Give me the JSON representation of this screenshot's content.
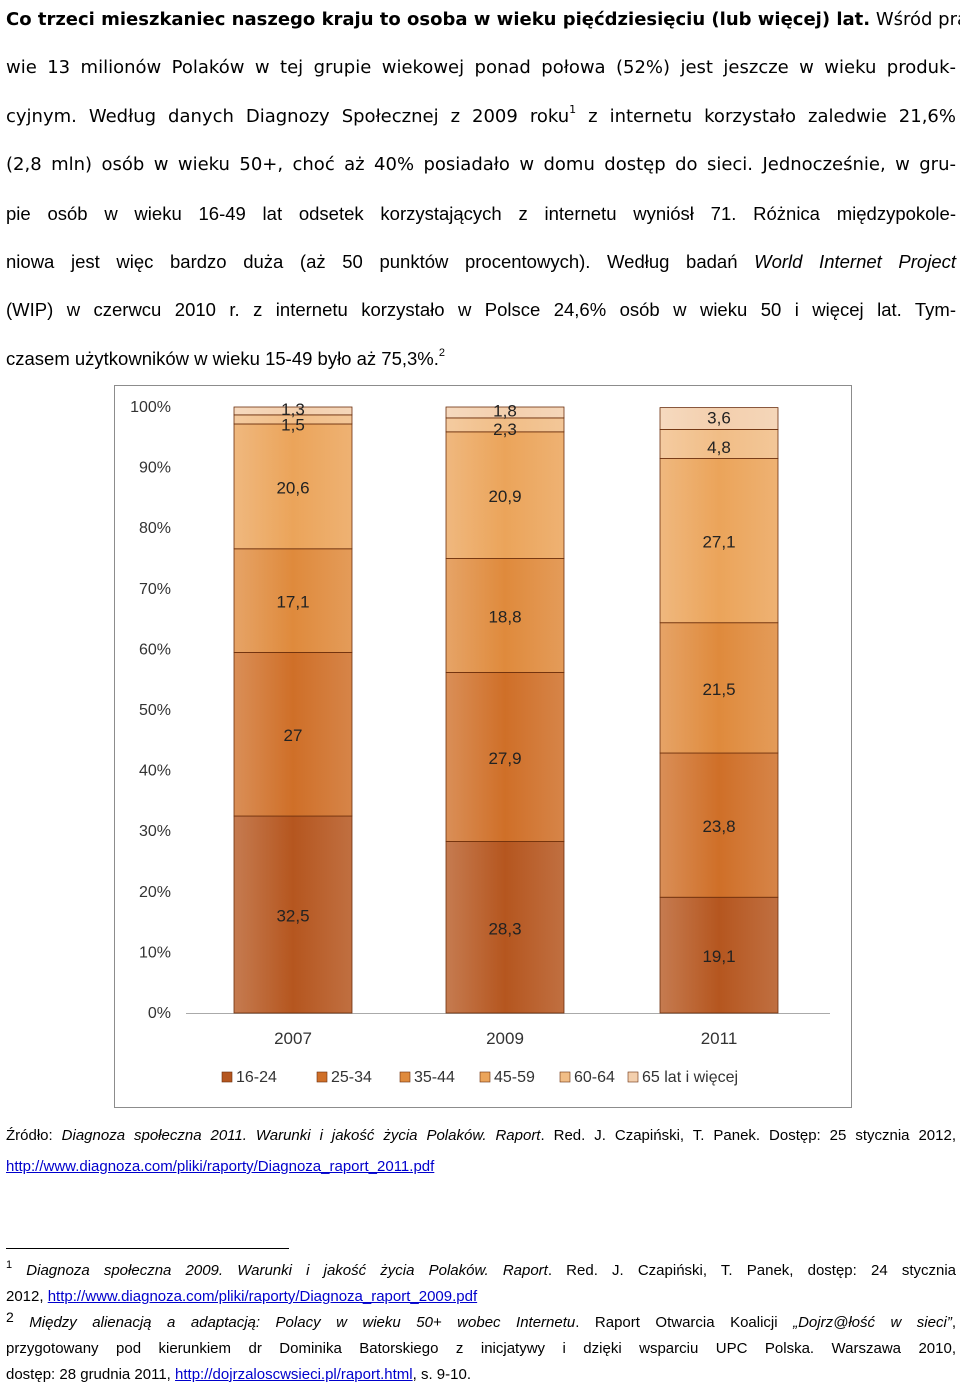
{
  "paragraph": {
    "l1_bold": "Co trzeci mieszkaniec naszego kraju to osoba w wieku pięćdziesięciu (lub więcej) lat.",
    "l1_rest": " Wśród pra-",
    "l2": "wie 13 milionów Polaków w tej grupie wiekowej ponad połowa (52%) jest jeszcze w wieku produk-",
    "l3_a": "cyjnym. Według danych Diagnozy Społecznej z 2009 roku",
    "l3_sup": "1",
    "l3_b": " z internetu korzystało zaledwie 21,6%",
    "l4": "(2,8 mln) osób w wieku 50+, choć aż 40% posiadało w domu dostęp do sieci. Jednocześnie, w gru-",
    "l5": "pie osób w wieku 16-49 lat odsetek korzystających z internetu wyniósł 71. Różnica międzypokole-",
    "l6_a": "niowa jest więc bardzo duża (aż 50 punktów procentowych). Według badań ",
    "l6_i": "World Internet Project",
    "l7": "(WIP) w czerwcu 2010 r. z internetu korzystało w Polsce 24,6% osób w wieku 50 i więcej lat. Tym-",
    "l8_a": "czasem użytkowników w wieku 15-49 było aż 75,3%.",
    "l8_sup": "2"
  },
  "chart_data": {
    "type": "bar",
    "stacked": true,
    "categories": [
      "2007",
      "2009",
      "2011"
    ],
    "yticks": [
      "0%",
      "10%",
      "20%",
      "30%",
      "40%",
      "50%",
      "60%",
      "70%",
      "80%",
      "90%",
      "100%"
    ],
    "ylim": [
      0,
      100
    ],
    "grid": false,
    "legend_position": "bottom",
    "series": [
      {
        "name": "16-24",
        "values": [
          32.5,
          28.3,
          19.1
        ],
        "labels": [
          "32,5",
          "28,3",
          "19,1"
        ],
        "color": "#b5561f"
      },
      {
        "name": "25-34",
        "values": [
          27,
          27.9,
          23.8
        ],
        "labels": [
          "27",
          "27,9",
          "23,8"
        ],
        "color": "#cf6f28"
      },
      {
        "name": "35-44",
        "values": [
          17.1,
          18.8,
          21.5
        ],
        "labels": [
          "17,1",
          "18,8",
          "21,5"
        ],
        "color": "#df8a3c"
      },
      {
        "name": "45-59",
        "values": [
          20.6,
          20.9,
          27.1
        ],
        "labels": [
          "20,6",
          "20,9",
          "27,1"
        ],
        "color": "#eba45a"
      },
      {
        "name": "60-64",
        "values": [
          1.5,
          2.3,
          4.8
        ],
        "labels": [
          "1,5",
          "2,3",
          "4,8"
        ],
        "color": "#f1bd86"
      },
      {
        "name": "65 lat i więcej",
        "values": [
          1.3,
          1.8,
          3.6
        ],
        "labels": [
          "1,3",
          "1,8",
          "3,6"
        ],
        "color": "#f3cfad"
      }
    ]
  },
  "source": {
    "prefix": "Źródło: ",
    "title_italic": "Diagnoza społeczna 2011. Warunki i jakość życia Polaków. Raport",
    "rest": ". Red. J. Czapiński, T. Panek. Dostęp: 25 stycznia 2012,",
    "link": "http://www.diagnoza.com/pliki/raporty/Diagnoza_raport_2011.pdf"
  },
  "footnotes": {
    "fn1_num": "1",
    "fn1_italic": "Diagnoza społeczna 2009. Warunki i jakość życia Polaków. Raport",
    "fn1_rest": ". Red. J. Czapiński, T. Panek, dostęp: 24 stycznia",
    "fn1_l2_a": "2012, ",
    "fn1_link": "http://www.diagnoza.com/pliki/raporty/Diagnoza_raport_2009.pdf",
    "fn2_num": "2",
    "fn2_italic": "Między alienacją a adaptacją: Polacy w wieku 50+ wobec Internetu",
    "fn2_rest": ". Raport Otwarcia Koalicji ",
    "fn2_italic2": "„Dojrz@łość w sieci”",
    "fn2_end": ",",
    "fn2_l2": "przygotowany pod kierunkiem dr Dominika Batorskiego z inicjatywy i dzięki wsparciu UPC Polska. Warszawa 2010,",
    "fn2_l3_a": "dostęp: 28 grudnia 2011, ",
    "fn2_link": "http://dojrzaloscwsieci.pl/raport.html",
    "fn2_l3_b": ", s. 9-10."
  }
}
